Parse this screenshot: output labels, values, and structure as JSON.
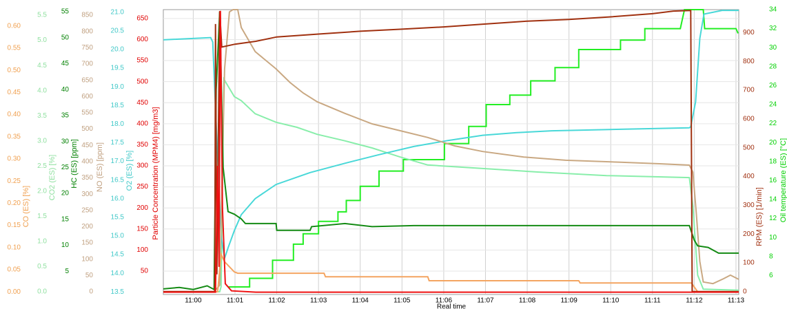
{
  "chart_data": {
    "type": "line",
    "xlabel": "Real time",
    "xlim": [
      "10:59:17",
      "11:13:04"
    ],
    "xticks": [
      "11:00",
      "11:01",
      "11:02",
      "11:03",
      "11:04",
      "11:05",
      "11:06",
      "11:07",
      "11:08",
      "11:09",
      "11:10",
      "11:11",
      "11:12",
      "11:13"
    ],
    "grid": true,
    "series": [
      {
        "name": "CO (ES) [%]",
        "color": "#f4a460",
        "label_color": "#f0a050",
        "side": "left",
        "ylim": [
          -0.006,
          0.637
        ],
        "yticks": [
          {
            "value": 0,
            "label": "0.00"
          },
          0.05,
          {
            "value": 0.1,
            "label": "0.10"
          },
          0.15,
          {
            "value": 0.2,
            "label": "0.20"
          },
          0.25,
          {
            "value": 0.3,
            "label": "0.30"
          },
          0.35,
          {
            "value": 0.4,
            "label": "0.40"
          },
          0.45,
          {
            "value": 0.5,
            "label": "0.50"
          },
          0.55,
          {
            "value": 0.6,
            "label": "0.60"
          }
        ],
        "x": [
          "10:59:17",
          "11:00:35",
          "11:00:40",
          "11:00:45",
          "11:00:59",
          "11:01:04",
          "11:03:08",
          "11:03:10",
          "11:05:37",
          "11:05:39",
          "11:09:14",
          "11:09:16",
          "11:11:56",
          "11:12:05",
          "11:13:04"
        ],
        "values": [
          0,
          0,
          0.085,
          0.068,
          0.045,
          0.042,
          0.042,
          0.034,
          0.034,
          0.025,
          0.025,
          0.02,
          0.02,
          0,
          0
        ]
      },
      {
        "name": "CO2 (ES) [%]",
        "color": "#88eeaa",
        "label_color": "#90e0a0",
        "side": "left",
        "ylim": [
          -0.055,
          5.61
        ],
        "yticks": [
          {
            "value": 0,
            "label": "0.0"
          },
          0.5,
          {
            "value": 1,
            "label": "1.0"
          },
          1.5,
          {
            "value": 2,
            "label": "2.0"
          },
          2.5,
          {
            "value": 3,
            "label": "3.0"
          },
          3.5,
          {
            "value": 4,
            "label": "4.0"
          },
          4.5,
          {
            "value": 5,
            "label": "5.0"
          },
          5.5
        ],
        "x": [
          "10:59:17",
          "11:00:38",
          "11:00:40",
          "11:00:44",
          "11:00:59",
          "11:01:09",
          "11:01:29",
          "11:01:59",
          "11:02:29",
          "11:02:58",
          "11:03:38",
          "11:04:17",
          "11:04:57",
          "11:05:37",
          "11:06:56",
          "11:08:15",
          "11:09:54",
          "11:11:53",
          "11:11:58",
          "11:12:05",
          "11:12:13",
          "11:13:04"
        ],
        "values": [
          0,
          0,
          0.1,
          4.23,
          3.88,
          3.8,
          3.54,
          3.37,
          3.27,
          3.13,
          3.0,
          2.86,
          2.68,
          2.52,
          2.45,
          2.38,
          2.31,
          2.27,
          1.7,
          0.33,
          0.05,
          0.03
        ]
      },
      {
        "name": "HC (ES) [ppm]",
        "color": "#138a13",
        "label_color": "#008000",
        "side": "left",
        "ylim": [
          0.53,
          55.4
        ],
        "yticks": [
          5,
          10,
          15,
          20,
          25,
          30,
          35,
          40,
          45,
          50,
          55
        ],
        "x": [
          "10:59:17",
          "10:59:40",
          "11:00:00",
          "11:00:20",
          "11:00:30",
          "11:00:33",
          "11:00:38",
          "11:00:43",
          "11:00:50",
          "11:00:59",
          "11:01:09",
          "11:01:15",
          "11:01:59",
          "11:02:00",
          "11:02:48",
          "11:02:50",
          "11:03:38",
          "11:04:17",
          "11:05:17",
          "11:11:53",
          "11:12:00",
          "11:12:05",
          "11:12:20",
          "11:12:35",
          "11:13:04"
        ],
        "values": [
          1.6,
          1.9,
          1.5,
          2.2,
          1.5,
          40,
          55,
          25,
          16.5,
          16.0,
          15.1,
          14.2,
          14.2,
          12.9,
          12.9,
          13.6,
          14.2,
          13.6,
          13.8,
          13.8,
          11.0,
          9.9,
          9.6,
          8.5,
          8.5
        ]
      },
      {
        "name": "NO (ES) [ppm]",
        "color": "#c9a882",
        "label_color": "#c0a080",
        "side": "left",
        "ylim": [
          -8.5,
          867
        ],
        "yticks": [
          0,
          50,
          100,
          150,
          200,
          250,
          300,
          350,
          400,
          450,
          500,
          550,
          600,
          650,
          700,
          750,
          800,
          850
        ],
        "x": [
          "10:59:17",
          "11:00:30",
          "11:00:38",
          "11:00:45",
          "11:00:52",
          "11:00:57",
          "11:01:04",
          "11:01:09",
          "11:01:29",
          "11:01:59",
          "11:02:19",
          "11:02:38",
          "11:02:58",
          "11:03:38",
          "11:04:17",
          "11:04:57",
          "11:05:37",
          "11:06:16",
          "11:06:56",
          "11:07:55",
          "11:08:55",
          "11:10:14",
          "11:11:13",
          "11:11:53",
          "11:11:58",
          "11:12:03",
          "11:12:08",
          "11:12:13",
          "11:12:27",
          "11:12:42",
          "11:12:52",
          "11:13:04"
        ],
        "values": [
          0,
          0,
          20,
          685,
          860,
          867,
          867,
          812,
          738,
          685,
          643,
          611,
          584,
          548,
          516,
          495,
          474,
          448,
          431,
          414,
          404,
          398,
          393,
          389,
          368,
          241,
          93,
          30,
          25,
          40,
          51,
          38
        ]
      },
      {
        "name": "O2 (ES) [%]",
        "color": "#48d8d8",
        "label_color": "#40c8c8",
        "side": "left",
        "ylim": [
          13.43,
          21.07
        ],
        "yticks": [
          13.5,
          {
            "value": 14,
            "label": "14.0"
          },
          14.5,
          {
            "value": 15,
            "label": "15.0"
          },
          15.5,
          {
            "value": 16,
            "label": "16.0"
          },
          16.5,
          {
            "value": 17,
            "label": "17.0"
          },
          17.5,
          {
            "value": 18,
            "label": "18.0"
          },
          18.5,
          {
            "value": 19,
            "label": "19.0"
          },
          19.5,
          {
            "value": 20,
            "label": "20.0"
          },
          20.5,
          {
            "value": 21,
            "label": "21.0"
          }
        ],
        "x": [
          "10:59:17",
          "11:00:25",
          "11:00:28",
          "11:00:33",
          "11:00:40",
          "11:00:45",
          "11:00:50",
          "11:00:59",
          "11:01:09",
          "11:01:29",
          "11:01:59",
          "11:02:48",
          "11:03:38",
          "11:04:27",
          "11:05:17",
          "11:06:06",
          "11:06:56",
          "11:07:45",
          "11:08:35",
          "11:10:14",
          "11:11:53",
          "11:11:55",
          "11:12:02",
          "11:12:08",
          "11:12:14",
          "11:12:40",
          "11:13:04"
        ],
        "values": [
          20.26,
          20.32,
          20.2,
          18.0,
          15.0,
          14.4,
          14.68,
          15.14,
          15.57,
          16.0,
          16.38,
          16.7,
          16.95,
          17.18,
          17.4,
          17.56,
          17.7,
          17.77,
          17.82,
          17.86,
          17.9,
          17.93,
          18.6,
          20.3,
          20.95,
          21.05,
          21.05
        ]
      },
      {
        "name": "Particle Concentration (MPM4) [mg/m3]",
        "color": "#ee1111",
        "label_color": "#e00000",
        "side": "left",
        "ylim": [
          -5.6,
          671
        ],
        "yticks": [
          50,
          100,
          150,
          200,
          250,
          300,
          350,
          400,
          450,
          500,
          550,
          600,
          650
        ],
        "x": [
          "10:59:17",
          "11:00:32",
          "11:00:35",
          "11:00:37",
          "11:00:39",
          "11:00:42",
          "11:00:46",
          "11:00:55",
          "11:01:30",
          "11:13:04"
        ],
        "values": [
          0,
          0,
          300,
          60,
          668,
          200,
          20,
          3,
          0,
          0
        ]
      },
      {
        "name": "RPM (ES) [1/min]",
        "color": "#a0300f",
        "label_color": "#a03010",
        "side": "right",
        "ylim": [
          -10,
          980
        ],
        "yticks": [
          0,
          100,
          200,
          300,
          400,
          500,
          600,
          700,
          800,
          900
        ],
        "x": [
          "10:59:17",
          "11:00:31",
          "11:00:32",
          "11:00:34",
          "11:00:38",
          "11:00:41",
          "11:01:00",
          "11:01:30",
          "11:02:00",
          "11:03:00",
          "11:04:00",
          "11:05:00",
          "11:06:00",
          "11:07:00",
          "11:08:00",
          "11:09:00",
          "11:10:00",
          "11:11:00",
          "11:11:30",
          "11:11:55",
          "11:11:57",
          "11:13:04"
        ],
        "values": [
          0,
          0,
          930,
          60,
          975,
          850,
          860,
          870,
          885,
          895,
          905,
          912,
          920,
          930,
          940,
          946,
          955,
          966,
          975,
          977,
          0,
          0
        ]
      },
      {
        "name": "Oil temperature (ES) [°C]",
        "color": "#22ee22",
        "label_color": "#00d000",
        "side": "right",
        "ylim": [
          4,
          34
        ],
        "yticks": [
          6,
          8,
          10,
          12,
          14,
          16,
          18,
          20,
          22,
          24,
          26,
          28,
          30,
          32,
          34
        ],
        "x": [
          "11:00:50",
          "11:01:21",
          "11:01:21",
          "11:01:54",
          "11:01:54",
          "11:02:24",
          "11:02:24",
          "11:02:38",
          "11:02:38",
          "11:03:00",
          "11:03:00",
          "11:03:28",
          "11:03:28",
          "11:03:40",
          "11:03:40",
          "11:04:00",
          "11:04:00",
          "11:04:27",
          "11:04:27",
          "11:05:02",
          "11:05:02",
          "11:06:01",
          "11:06:01",
          "11:06:36",
          "11:06:36",
          "11:07:01",
          "11:07:01",
          "11:07:35",
          "11:07:35",
          "11:08:05",
          "11:08:05",
          "11:08:40",
          "11:08:40",
          "11:09:14",
          "11:09:14",
          "11:10:14",
          "11:10:14",
          "11:10:49",
          "11:10:49",
          "11:11:40",
          "11:11:46",
          "11:12:13",
          "11:12:15",
          "11:13:00",
          "11:13:03"
        ],
        "values": [
          4.8,
          4.8,
          5.7,
          5.7,
          7.6,
          7.6,
          9.3,
          9.3,
          10.4,
          10.4,
          11.7,
          11.7,
          12.7,
          12.7,
          13.9,
          13.9,
          15.4,
          15.4,
          17.0,
          17.0,
          18.2,
          18.2,
          19.9,
          19.9,
          21.7,
          21.7,
          24.0,
          24.0,
          25.0,
          25.0,
          26.5,
          26.5,
          27.9,
          27.9,
          29.8,
          29.8,
          30.8,
          30.8,
          32.0,
          32.0,
          34.0,
          34.0,
          32.0,
          32.0,
          31.5
        ]
      }
    ]
  }
}
